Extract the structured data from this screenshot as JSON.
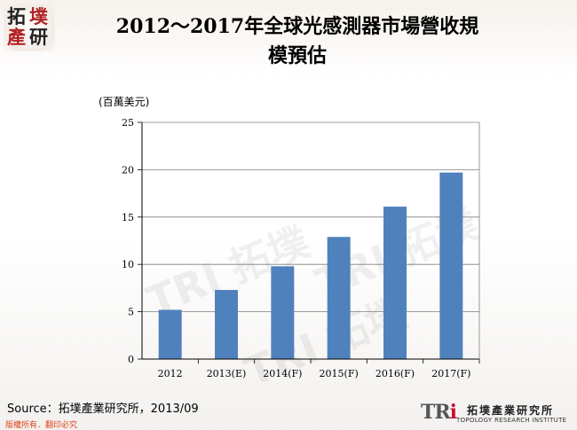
{
  "logo": {
    "chars": [
      "拓",
      "墣",
      "產",
      "研"
    ]
  },
  "title": {
    "line1": "2012～2017年全球光感測器市場營收規",
    "line2": "模預估"
  },
  "watermark": [
    "TRI 拓墣",
    "TRI 拓墣",
    "TRI 拓墣"
  ],
  "chart_data": {
    "type": "bar",
    "categories": [
      "2012",
      "2013(E)",
      "2014(F)",
      "2015(F)",
      "2016(F)",
      "2017(F)"
    ],
    "values": [
      5.2,
      7.3,
      9.8,
      12.9,
      16.1,
      19.7
    ],
    "unit": "(百萬美元)",
    "ylim": [
      0,
      25
    ],
    "yticks": [
      0,
      5,
      10,
      15,
      20,
      25
    ],
    "grid": true,
    "bar_color": "#4f81bd",
    "legend": "none"
  },
  "footer": {
    "source": "Source：拓墣產業研究所，2013/09",
    "copyright": "版權所有．翻印必究",
    "tri_mark_a": "TR",
    "tri_mark_b": "i",
    "tri_cn": "拓墣產業研究所",
    "tri_en": "TOPOLOGY RESEARCH INSTITUTE"
  }
}
